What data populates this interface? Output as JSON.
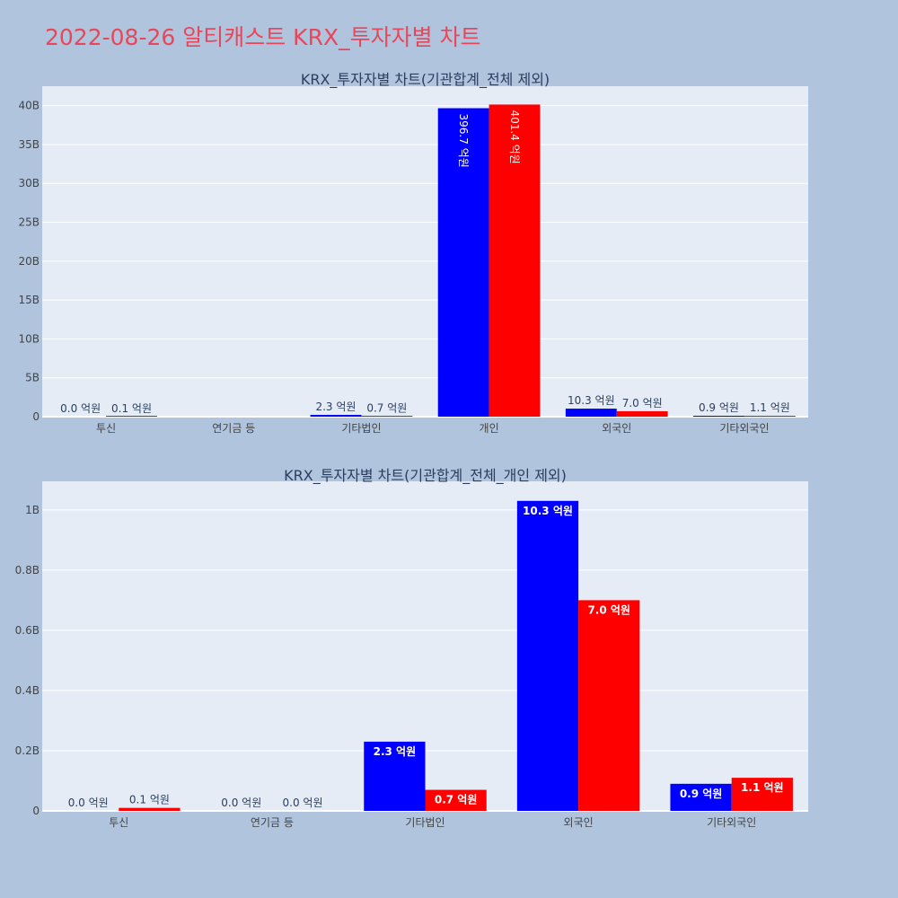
{
  "page": {
    "title": "2022-08-26 알티캐스트 KRX_투자자별 차트",
    "title_color": "#e8475a",
    "background": "#b0c4de",
    "plot_background": "#e5ecf6",
    "grid_color": "#ffffff"
  },
  "chart_data": [
    {
      "type": "bar",
      "title": "KRX_투자자별 차트(기관합계_전체 제외)",
      "categories": [
        "투신",
        "연기금 등",
        "기타법인",
        "개인",
        "외국인",
        "기타외국인"
      ],
      "series": [
        {
          "color": "#0000ff",
          "values": [
            0,
            0,
            230000000,
            39670000000,
            1030000000,
            90000000
          ],
          "labels": [
            "0.0 억원",
            "",
            "2.3 억원",
            "396.7 억원",
            "10.3 억원",
            "0.9 억원"
          ]
        },
        {
          "color": "#ff0000",
          "values": [
            10000000,
            0,
            70000000,
            40140000000,
            700000000,
            110000000
          ],
          "labels": [
            "0.1 억원",
            "",
            "0.7 억원",
            "401.4 억원",
            "7.0 억원",
            "1.1 억원"
          ]
        }
      ],
      "ylim": [
        0,
        42500000000
      ],
      "yticks": [
        0,
        5000000000,
        10000000000,
        15000000000,
        20000000000,
        25000000000,
        30000000000,
        35000000000,
        40000000000
      ],
      "yticklabels": [
        "0",
        "5B",
        "10B",
        "15B",
        "20B",
        "25B",
        "30B",
        "35B",
        "40B"
      ],
      "grid": true,
      "legend": "none"
    },
    {
      "type": "bar",
      "title": "KRX_투자자별 차트(기관합계_전체_개인 제외)",
      "categories": [
        "투신",
        "연기금 등",
        "기타법인",
        "외국인",
        "기타외국인"
      ],
      "series": [
        {
          "color": "#0000ff",
          "values": [
            0,
            0,
            230000000,
            1030000000,
            90000000
          ],
          "labels": [
            "0.0 억원",
            "0.0 억원",
            "2.3 억원",
            "10.3 억원",
            "0.9 억원"
          ]
        },
        {
          "color": "#ff0000",
          "values": [
            10000000,
            0,
            70000000,
            700000000,
            110000000
          ],
          "labels": [
            "0.1 억원",
            "0.0 억원",
            "0.7 억원",
            "7.0 억원",
            "1.1 억원"
          ]
        }
      ],
      "ylim": [
        0,
        1095000000
      ],
      "yticks": [
        0,
        200000000,
        400000000,
        600000000,
        800000000,
        1000000000
      ],
      "yticklabels": [
        "0",
        "0.2B",
        "0.4B",
        "0.6B",
        "0.8B",
        "1B"
      ],
      "grid": true,
      "legend": "none"
    }
  ]
}
